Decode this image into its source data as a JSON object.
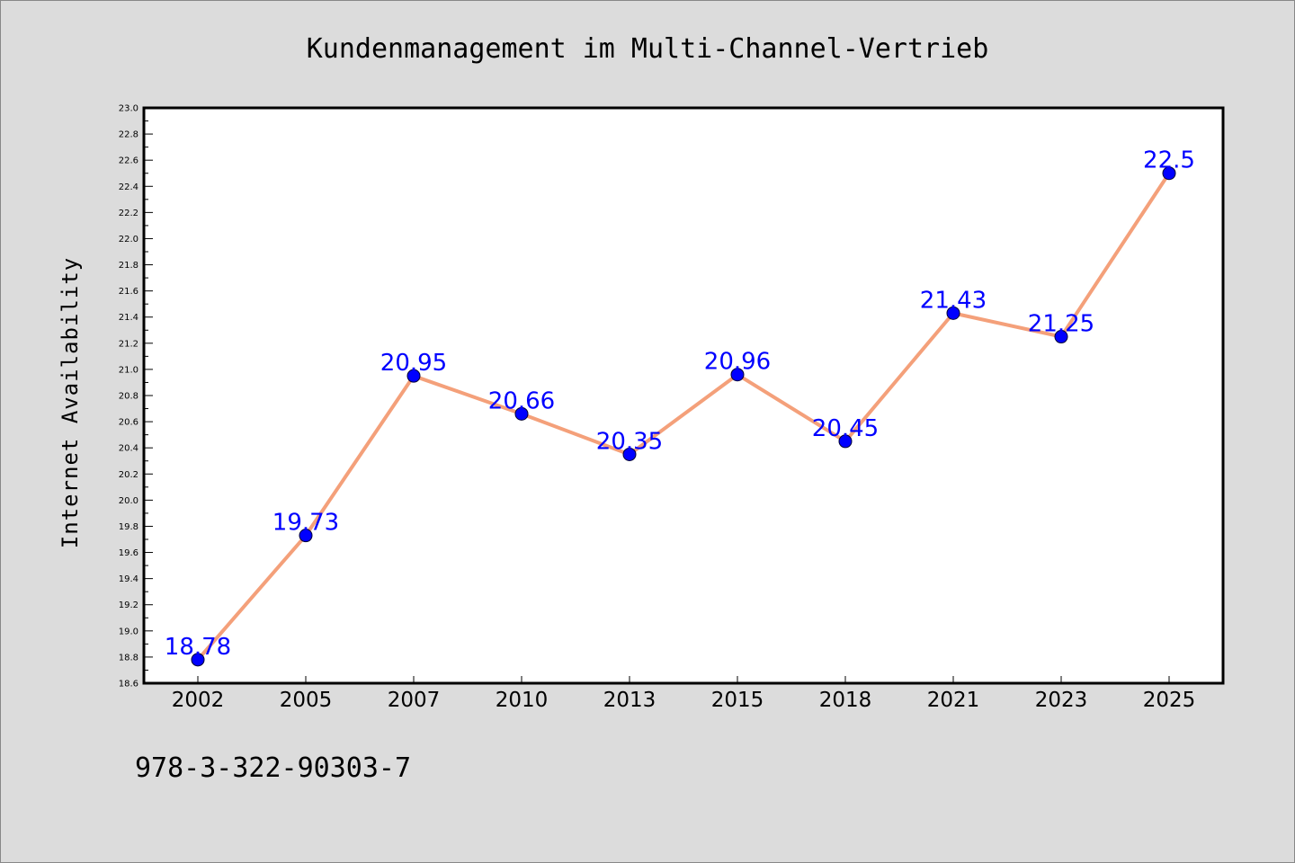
{
  "chart_data": {
    "type": "line",
    "title": "Kundenmanagement im Multi-Channel-Vertrieb",
    "xlabel": "",
    "ylabel": "Internet Availability",
    "categories": [
      "2002",
      "2005",
      "2007",
      "2010",
      "2013",
      "2015",
      "2018",
      "2021",
      "2023",
      "2025"
    ],
    "series": [
      {
        "values": [
          18.78,
          19.73,
          20.95,
          20.66,
          20.35,
          20.96,
          20.45,
          21.43,
          21.25,
          22.5
        ],
        "labels": [
          "18.78",
          "19.73",
          "20.95",
          "20.66",
          "20.35",
          "20.96",
          "20.45",
          "21.43",
          "21.25",
          "22.5"
        ],
        "line_color": "#f4a07a",
        "marker_color": "#0000ff",
        "label_color": "#0000ff"
      }
    ],
    "ylim": [
      18.6,
      23.0
    ],
    "yticks": [
      "18.6",
      "18.8",
      "19.0",
      "19.2",
      "19.4",
      "19.6",
      "19.8",
      "20.0",
      "20.2",
      "20.4",
      "20.6",
      "20.8",
      "21.0",
      "21.2",
      "21.4",
      "21.6",
      "21.8",
      "22.0",
      "22.2",
      "22.4",
      "22.6",
      "22.8",
      "23.0"
    ],
    "grid": false,
    "legend": "none",
    "background_color": "#dcdcdc",
    "plot_background_color": "#ffffff"
  },
  "footnote": "978-3-322-90303-7"
}
